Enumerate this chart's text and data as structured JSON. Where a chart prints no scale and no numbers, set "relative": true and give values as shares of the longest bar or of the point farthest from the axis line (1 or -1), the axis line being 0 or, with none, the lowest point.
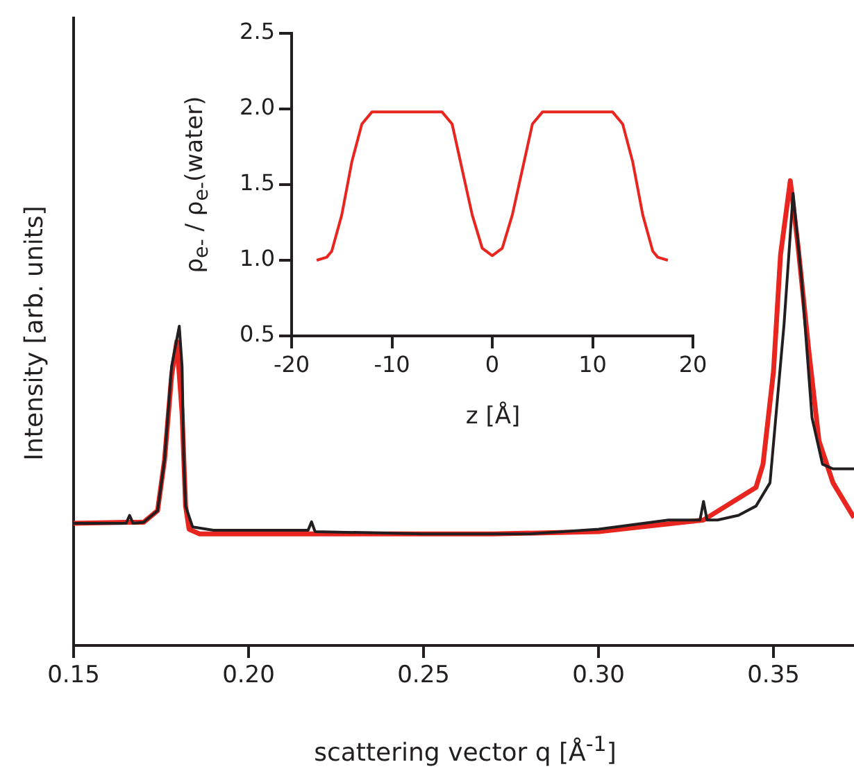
{
  "chart_data": [
    {
      "type": "line",
      "relative": true,
      "xlabel": "scattering vector q [Å$^{-1}$]",
      "ylabel": "Intensity [arb. units]",
      "xlim": [
        0.15,
        0.373
      ],
      "xticks": [
        0.15,
        {
          "value": 0.2,
          "label": "0.20"
        },
        0.25,
        {
          "value": 0.3,
          "label": "0.30"
        },
        0.35
      ],
      "grid": false,
      "legend": false,
      "marker": "none",
      "series": [
        {
          "color": "#e8251f",
          "x": [
            0.15,
            0.165,
            0.17,
            0.174,
            0.176,
            0.178,
            0.1795,
            0.181,
            0.182,
            0.183,
            0.186,
            0.22,
            0.27,
            0.3,
            0.33,
            0.345,
            0.347,
            0.35,
            0.352,
            0.3548,
            0.357,
            0.36,
            0.363,
            0.367,
            0.373
          ],
          "values": [
            0.263,
            0.265,
            0.265,
            0.29,
            0.4,
            0.58,
            0.654,
            0.5,
            0.3,
            0.25,
            0.24,
            0.24,
            0.24,
            0.245,
            0.27,
            0.34,
            0.39,
            0.59,
            0.84,
            1.0,
            0.86,
            0.64,
            0.44,
            0.35,
            0.275
          ]
        },
        {
          "color": "#231f20",
          "x": [
            0.15,
            0.165,
            0.166,
            0.167,
            0.17,
            0.174,
            0.176,
            0.178,
            0.1802,
            0.181,
            0.1815,
            0.182,
            0.184,
            0.19,
            0.217,
            0.218,
            0.219,
            0.25,
            0.28,
            0.3,
            0.32,
            0.329,
            0.33,
            0.331,
            0.334,
            0.34,
            0.345,
            0.349,
            0.353,
            0.3556,
            0.358,
            0.361,
            0.364,
            0.367,
            0.373
          ],
          "values": [
            0.263,
            0.263,
            0.28,
            0.263,
            0.265,
            0.29,
            0.4,
            0.6,
            0.687,
            0.6,
            0.4,
            0.3,
            0.255,
            0.248,
            0.248,
            0.266,
            0.245,
            0.24,
            0.24,
            0.25,
            0.27,
            0.27,
            0.31,
            0.27,
            0.27,
            0.28,
            0.3,
            0.35,
            0.69,
            0.973,
            0.79,
            0.49,
            0.39,
            0.38,
            0.38
          ]
        }
      ]
    },
    {
      "type": "line",
      "xlabel": "z [Å]",
      "ylabel": "ρ$_{e-}$ / ρ$_{e-}$(water)",
      "xlim": [
        -20,
        20
      ],
      "xticks": [
        -20,
        -10,
        0,
        10,
        20
      ],
      "ylim": [
        0.5,
        2.5
      ],
      "yticks": [
        0.5,
        {
          "value": 1,
          "label": "1.0"
        },
        1.5,
        {
          "value": 2,
          "label": "2.0"
        },
        2.5
      ],
      "grid": false,
      "legend": false,
      "marker": "none",
      "series": [
        {
          "color": "#e8251f",
          "x": [
            -17.5,
            -16.5,
            -16,
            -15,
            -14,
            -13,
            -12,
            -5,
            -4,
            -3,
            -2,
            -1,
            0,
            1,
            2,
            3,
            4,
            5,
            12,
            13,
            14,
            15,
            16,
            16.5,
            17.5
          ],
          "values": [
            1.0,
            1.02,
            1.06,
            1.3,
            1.65,
            1.9,
            1.98,
            1.98,
            1.9,
            1.6,
            1.3,
            1.08,
            1.03,
            1.08,
            1.3,
            1.6,
            1.9,
            1.98,
            1.98,
            1.9,
            1.65,
            1.3,
            1.06,
            1.02,
            1.0
          ]
        }
      ]
    }
  ]
}
